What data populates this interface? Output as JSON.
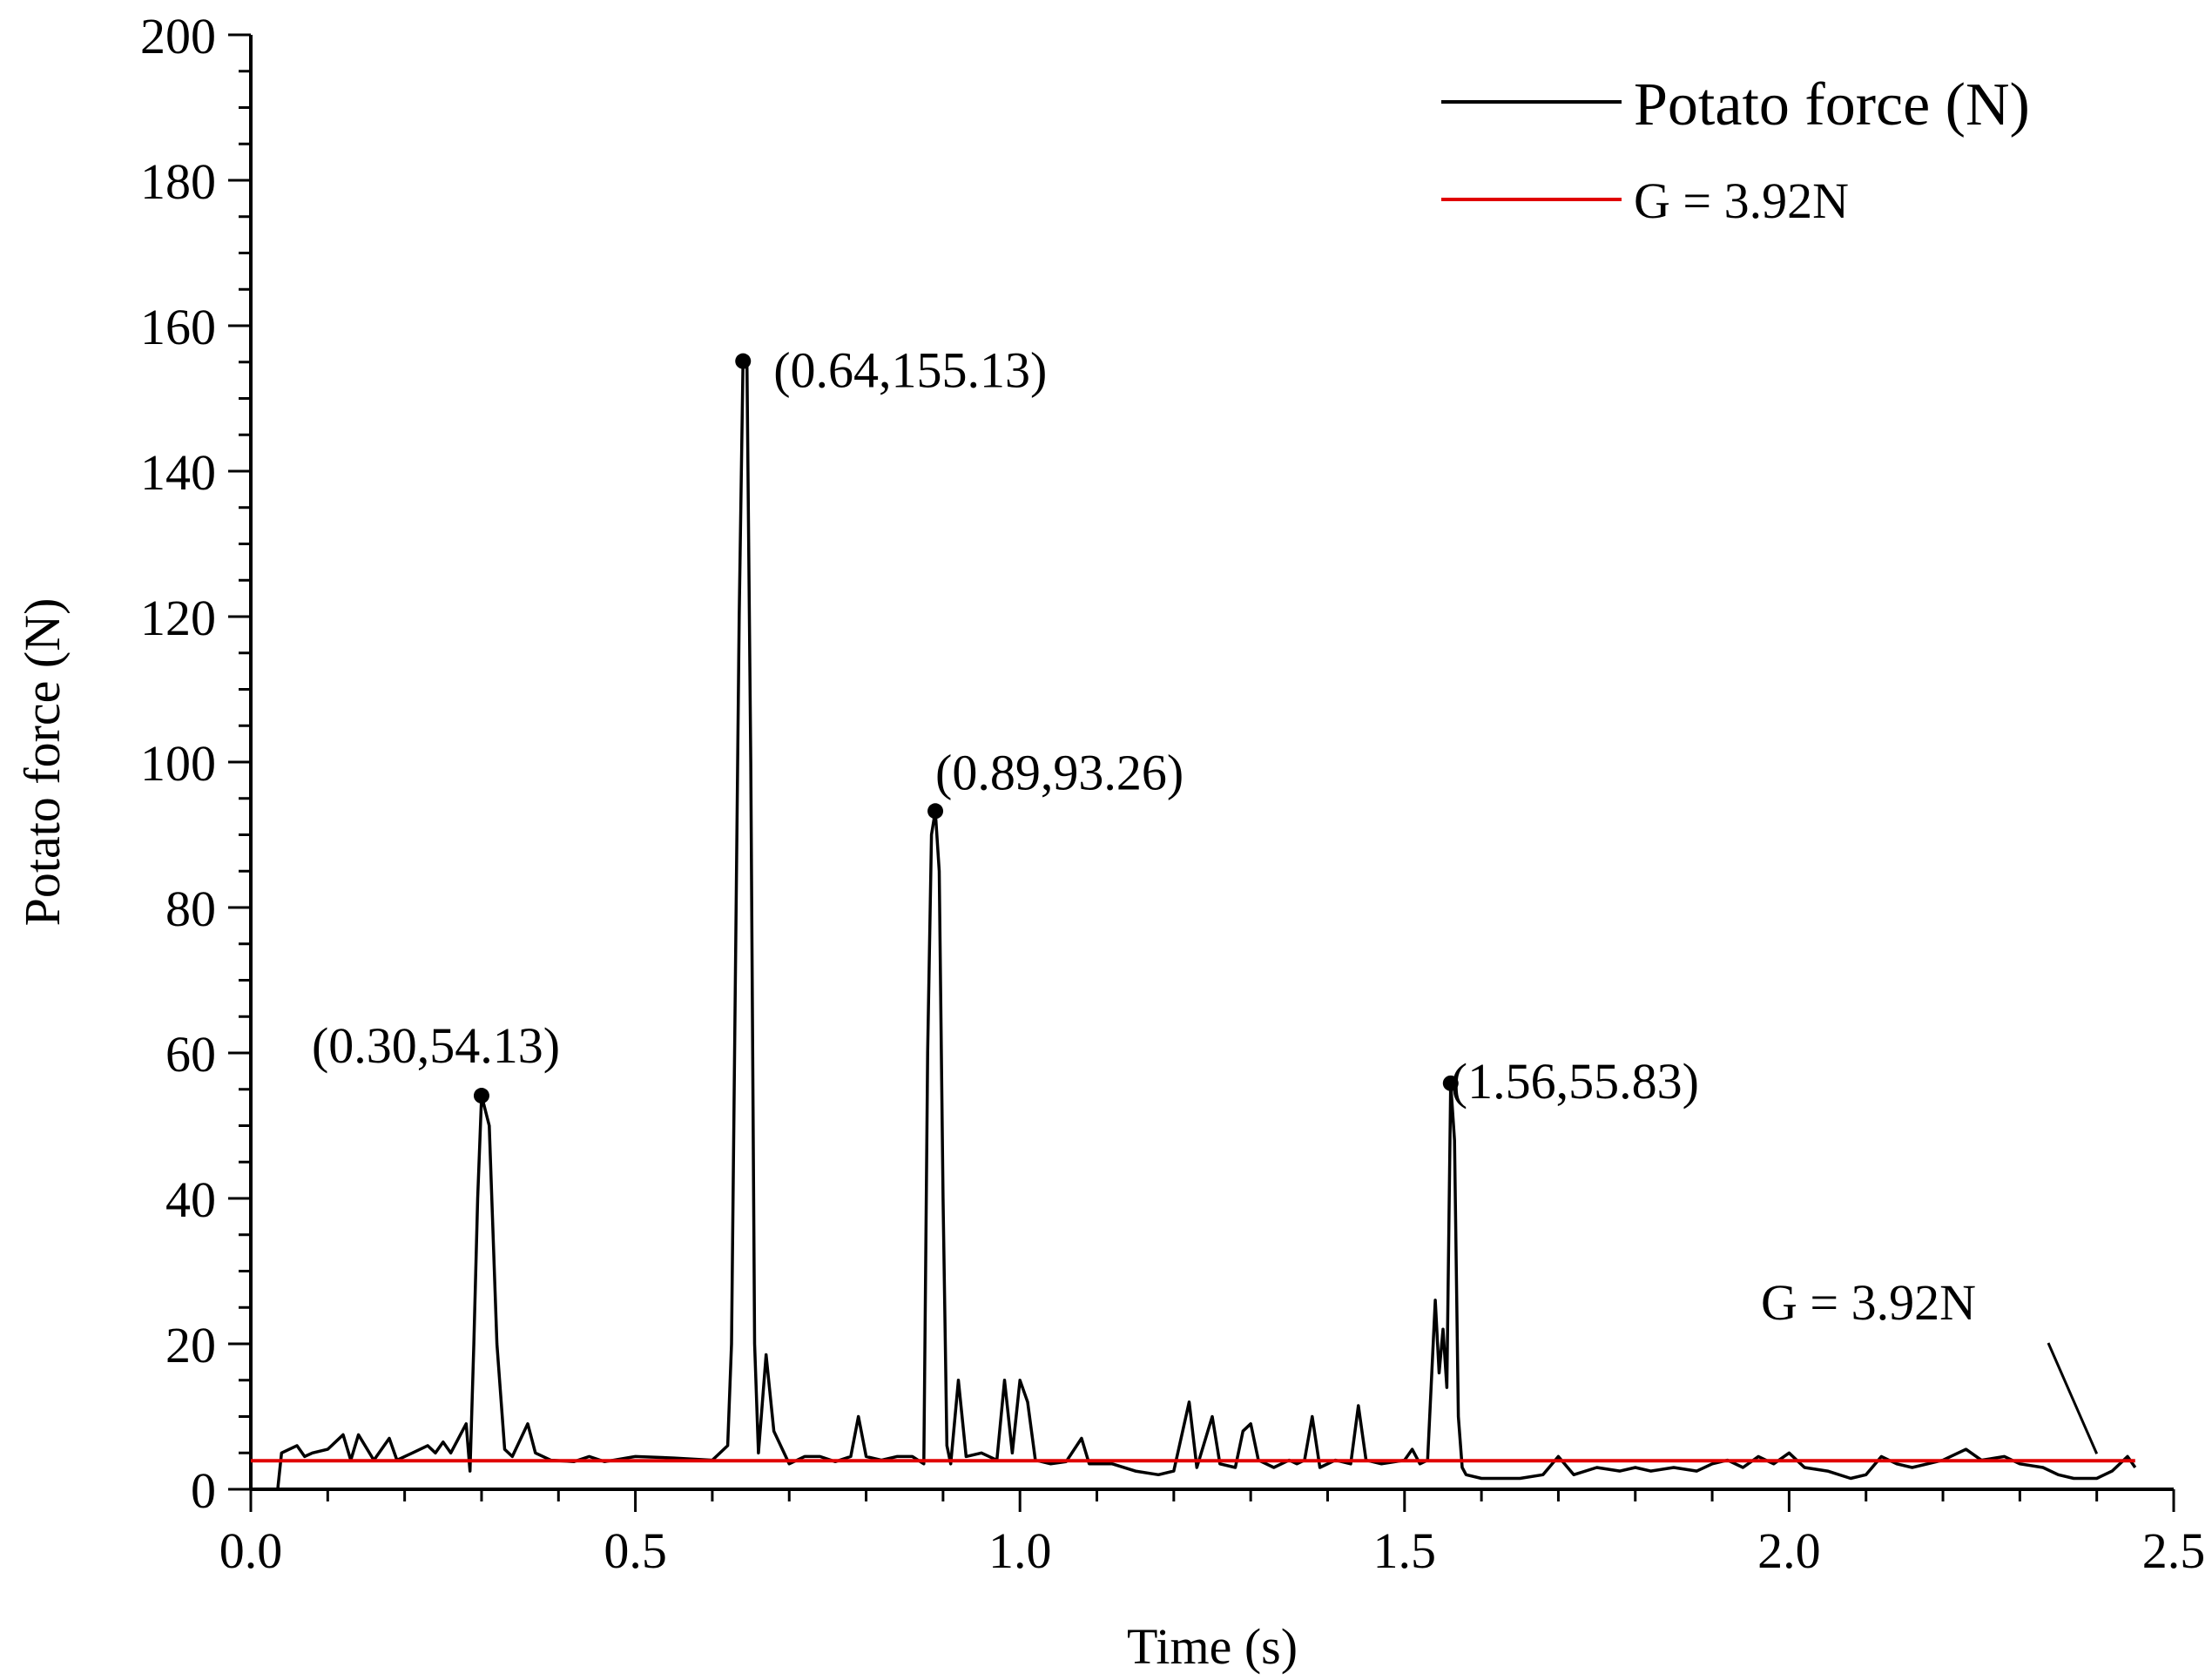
{
  "chart_data": {
    "type": "line",
    "title": "",
    "xlabel": "Time (s)",
    "ylabel": "Potato force (N)",
    "xlim": [
      0.0,
      2.5
    ],
    "ylim": [
      0,
      200
    ],
    "x_ticks": [
      "0.0",
      "0.5",
      "1.0",
      "1.5",
      "2.0",
      "2.5"
    ],
    "y_ticks": [
      "0",
      "20",
      "40",
      "60",
      "80",
      "100",
      "120",
      "140",
      "160",
      "180",
      "200"
    ],
    "x_tick_values": [
      0.0,
      0.5,
      1.0,
      1.5,
      2.0,
      2.5
    ],
    "y_tick_values": [
      0,
      20,
      40,
      60,
      80,
      100,
      120,
      140,
      160,
      180,
      200
    ],
    "grid": false,
    "legend_position": "top-right",
    "series": [
      {
        "name": "Potato force (N)",
        "color": "#000000",
        "points": [
          [
            0.035,
            0
          ],
          [
            0.04,
            5
          ],
          [
            0.05,
            5.5
          ],
          [
            0.06,
            6
          ],
          [
            0.07,
            4.5
          ],
          [
            0.08,
            5
          ],
          [
            0.1,
            5.5
          ],
          [
            0.12,
            7.5
          ],
          [
            0.13,
            4
          ],
          [
            0.14,
            7.5
          ],
          [
            0.16,
            4
          ],
          [
            0.18,
            7
          ],
          [
            0.19,
            4
          ],
          [
            0.21,
            5
          ],
          [
            0.23,
            6
          ],
          [
            0.24,
            5
          ],
          [
            0.25,
            6.5
          ],
          [
            0.26,
            5
          ],
          [
            0.27,
            7
          ],
          [
            0.28,
            9
          ],
          [
            0.285,
            2.5
          ],
          [
            0.29,
            20
          ],
          [
            0.295,
            40
          ],
          [
            0.3,
            54.13
          ],
          [
            0.31,
            50
          ],
          [
            0.32,
            20
          ],
          [
            0.33,
            5.5
          ],
          [
            0.34,
            4.5
          ],
          [
            0.36,
            9
          ],
          [
            0.37,
            5
          ],
          [
            0.39,
            4
          ],
          [
            0.42,
            3.8
          ],
          [
            0.44,
            4.5
          ],
          [
            0.46,
            3.8
          ],
          [
            0.5,
            4.5
          ],
          [
            0.55,
            4.3
          ],
          [
            0.6,
            4
          ],
          [
            0.62,
            6
          ],
          [
            0.625,
            20
          ],
          [
            0.63,
            70
          ],
          [
            0.635,
            120
          ],
          [
            0.64,
            155.13
          ],
          [
            0.645,
            155
          ],
          [
            0.65,
            100
          ],
          [
            0.655,
            20
          ],
          [
            0.66,
            5
          ],
          [
            0.67,
            18.5
          ],
          [
            0.68,
            8
          ],
          [
            0.7,
            3.5
          ],
          [
            0.72,
            4.5
          ],
          [
            0.74,
            4.5
          ],
          [
            0.76,
            3.8
          ],
          [
            0.78,
            4.5
          ],
          [
            0.79,
            10
          ],
          [
            0.8,
            4.5
          ],
          [
            0.82,
            4
          ],
          [
            0.84,
            4.5
          ],
          [
            0.86,
            4.5
          ],
          [
            0.875,
            3.5
          ],
          [
            0.88,
            60
          ],
          [
            0.885,
            90
          ],
          [
            0.89,
            93.26
          ],
          [
            0.895,
            85
          ],
          [
            0.9,
            40
          ],
          [
            0.905,
            6
          ],
          [
            0.91,
            3.5
          ],
          [
            0.92,
            15
          ],
          [
            0.93,
            4.5
          ],
          [
            0.95,
            5
          ],
          [
            0.97,
            4
          ],
          [
            0.98,
            15
          ],
          [
            0.99,
            5
          ],
          [
            1.0,
            15
          ],
          [
            1.01,
            12
          ],
          [
            1.02,
            4
          ],
          [
            1.04,
            3.5
          ],
          [
            1.06,
            3.8
          ],
          [
            1.08,
            7
          ],
          [
            1.09,
            3.5
          ],
          [
            1.12,
            3.5
          ],
          [
            1.15,
            2.5
          ],
          [
            1.18,
            2
          ],
          [
            1.2,
            2.5
          ],
          [
            1.22,
            12
          ],
          [
            1.23,
            3
          ],
          [
            1.25,
            10
          ],
          [
            1.26,
            3.5
          ],
          [
            1.28,
            3
          ],
          [
            1.29,
            8
          ],
          [
            1.3,
            9
          ],
          [
            1.31,
            4
          ],
          [
            1.33,
            3
          ],
          [
            1.35,
            4
          ],
          [
            1.36,
            3.5
          ],
          [
            1.37,
            4
          ],
          [
            1.38,
            10
          ],
          [
            1.39,
            3
          ],
          [
            1.41,
            4
          ],
          [
            1.43,
            3.5
          ],
          [
            1.44,
            11.5
          ],
          [
            1.45,
            4
          ],
          [
            1.47,
            3.5
          ],
          [
            1.5,
            4
          ],
          [
            1.51,
            5.5
          ],
          [
            1.52,
            3.5
          ],
          [
            1.53,
            4
          ],
          [
            1.54,
            26
          ],
          [
            1.545,
            16
          ],
          [
            1.55,
            22
          ],
          [
            1.555,
            14
          ],
          [
            1.56,
            55.83
          ],
          [
            1.565,
            48
          ],
          [
            1.57,
            10
          ],
          [
            1.575,
            3
          ],
          [
            1.58,
            2
          ],
          [
            1.6,
            1.5
          ],
          [
            1.63,
            1.5
          ],
          [
            1.65,
            1.5
          ],
          [
            1.68,
            2
          ],
          [
            1.7,
            4.5
          ],
          [
            1.72,
            2
          ],
          [
            1.75,
            3
          ],
          [
            1.78,
            2.5
          ],
          [
            1.8,
            3
          ],
          [
            1.82,
            2.5
          ],
          [
            1.85,
            3
          ],
          [
            1.88,
            2.5
          ],
          [
            1.9,
            3.5
          ],
          [
            1.92,
            4
          ],
          [
            1.94,
            3
          ],
          [
            1.96,
            4.5
          ],
          [
            1.98,
            3.5
          ],
          [
            2.0,
            5
          ],
          [
            2.02,
            3
          ],
          [
            2.05,
            2.5
          ],
          [
            2.08,
            1.5
          ],
          [
            2.1,
            2
          ],
          [
            2.12,
            4.5
          ],
          [
            2.14,
            3.5
          ],
          [
            2.16,
            3
          ],
          [
            2.18,
            3.5
          ],
          [
            2.2,
            4
          ],
          [
            2.23,
            5.5
          ],
          [
            2.25,
            4
          ],
          [
            2.28,
            4.5
          ],
          [
            2.3,
            3.5
          ],
          [
            2.33,
            3
          ],
          [
            2.35,
            2
          ],
          [
            2.37,
            1.5
          ],
          [
            2.4,
            1.5
          ],
          [
            2.42,
            2.5
          ],
          [
            2.44,
            4.5
          ],
          [
            2.45,
            3
          ]
        ]
      },
      {
        "name": "G = 3.92N",
        "color": "#e00000",
        "points": [
          [
            0.0,
            3.92
          ],
          [
            2.45,
            3.92
          ]
        ]
      }
    ],
    "annotations": [
      {
        "text": "(0.30,54.13)",
        "x": 0.3,
        "y": 54.13
      },
      {
        "text": "(0.64,155.13)",
        "x": 0.64,
        "y": 155.13
      },
      {
        "text": "(0.89,93.26)",
        "x": 0.89,
        "y": 93.26
      },
      {
        "text": "(1.56,55.83)",
        "x": 1.56,
        "y": 55.83
      },
      {
        "text": "G = 3.92N",
        "x": 2.4,
        "y": 3.92
      }
    ]
  }
}
